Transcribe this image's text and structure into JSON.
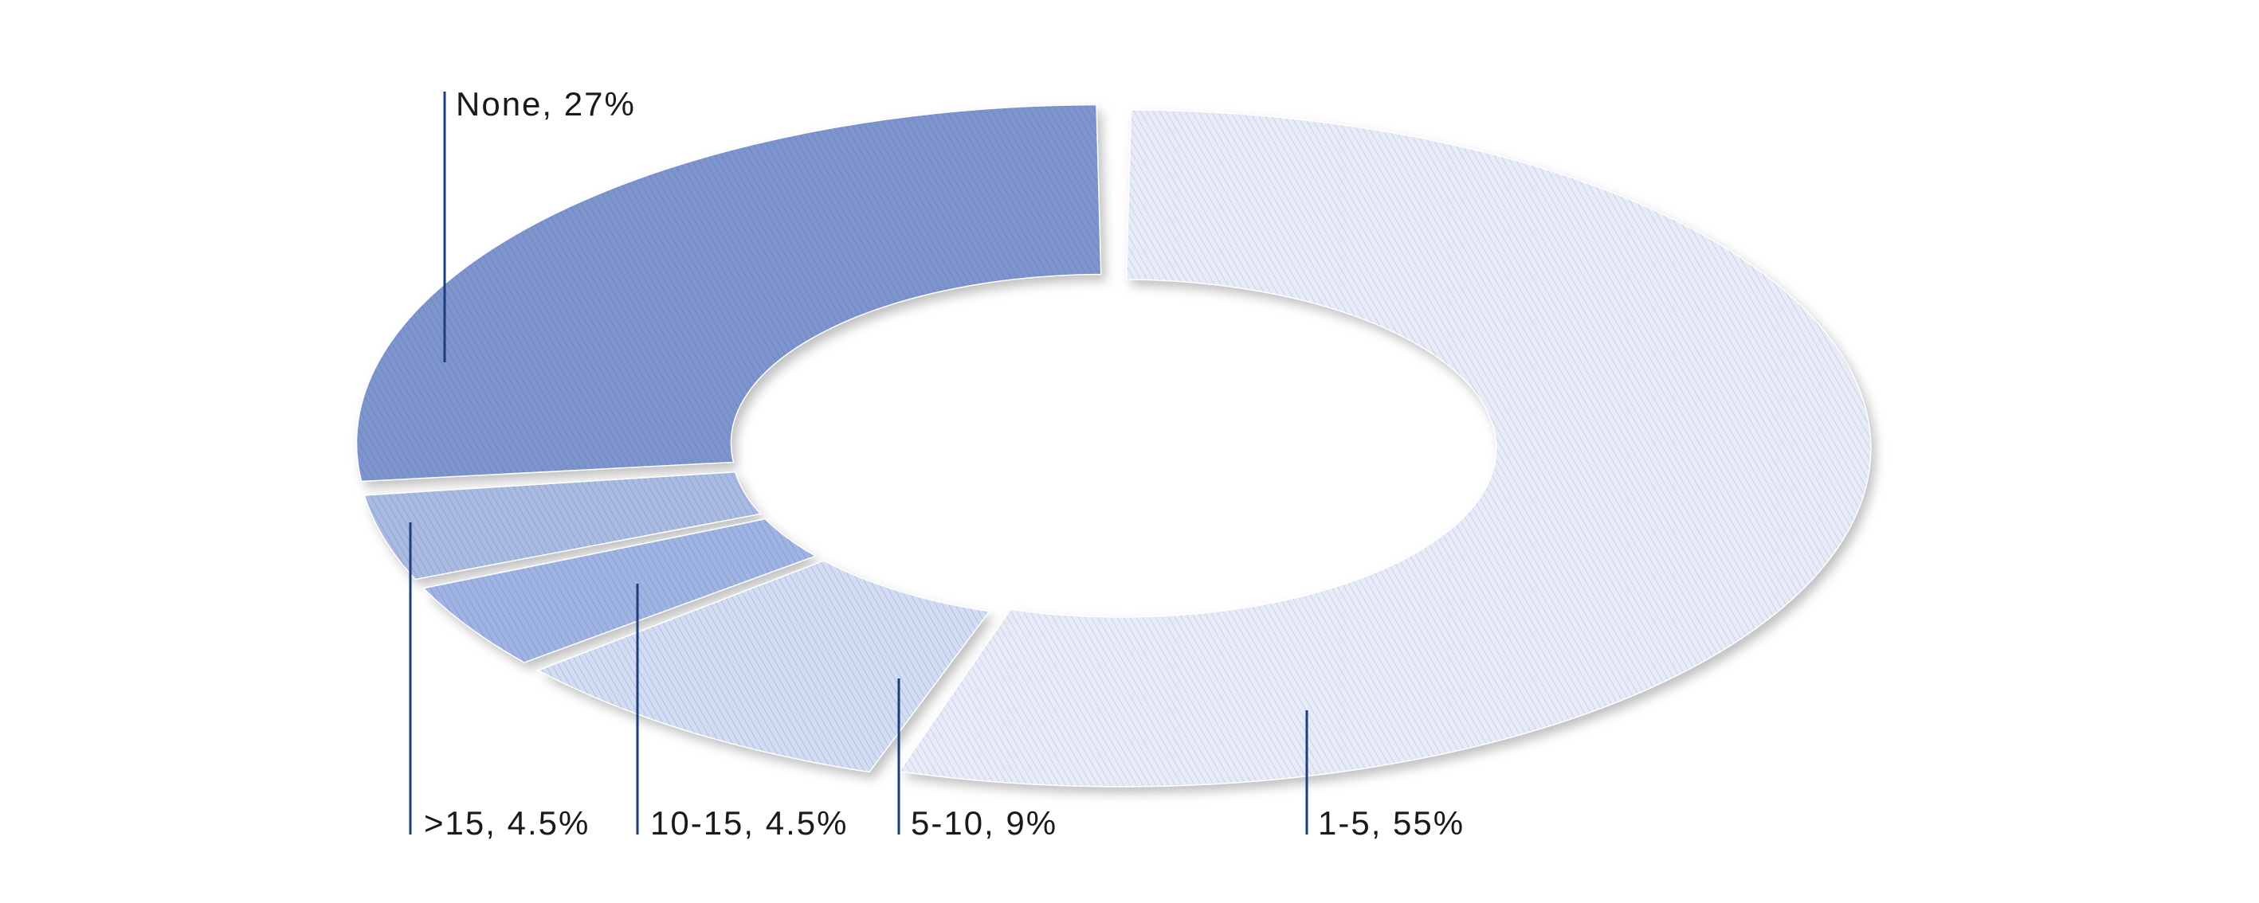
{
  "chart_data": {
    "type": "pie",
    "variant": "donut",
    "categories": [
      "1-5",
      "5-10",
      "10-15",
      ">15",
      "None"
    ],
    "values": [
      55,
      9,
      4.5,
      4.5,
      27
    ],
    "value_unit": "%",
    "data_labels": [
      "1-5, 55%",
      "5-10, 9%",
      "10-15, 4.5%",
      ">15, 4.5%",
      "None, 27%"
    ],
    "legend": "none",
    "title": ""
  },
  "colors": {
    "slices": [
      "#e7ebf7",
      "#d2dcf2",
      "#9fb4e3",
      "#aabbe2",
      "#7d94cd"
    ],
    "hatch": "#4a5f9a",
    "leader_line": "#1f3d7a",
    "label_text": "#1a1a1a",
    "shadow": "#8a8a8a",
    "background": "#ffffff"
  }
}
